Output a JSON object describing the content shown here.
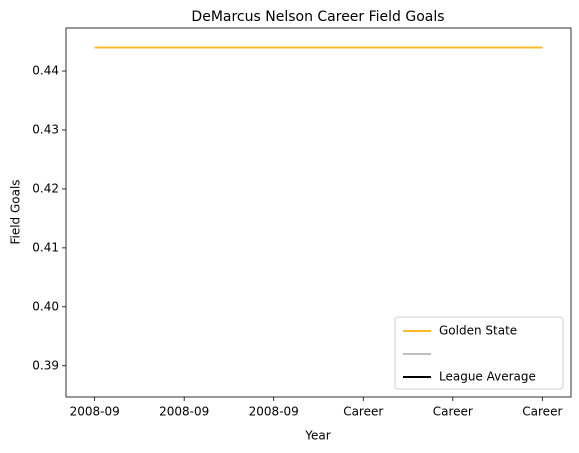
{
  "chart_data": {
    "type": "line",
    "title": "DeMarcus Nelson Career Field Goals",
    "x_label": "Year",
    "y_label": "Field Goals",
    "categories": [
      "2008-09",
      "2008-09",
      "2008-09",
      "Career",
      "Career",
      "Career"
    ],
    "series": [
      {
        "name": "Golden State",
        "color": "#fdb927",
        "values": [
          0.444,
          0.444,
          0.444,
          0.444,
          0.444,
          0.444
        ]
      },
      {
        "color": "#bfbfbf",
        "values": [
          null,
          null,
          null,
          null,
          null,
          null
        ]
      },
      {
        "name": "League Average",
        "color": "#000000",
        "values": [
          null,
          null,
          null,
          null,
          null,
          null
        ]
      }
    ],
    "ylim": [
      0.3847,
      0.4473
    ],
    "yticks": [
      0.39,
      {
        "value": 0.4,
        "label": "0.40"
      },
      0.41,
      0.42,
      0.43,
      0.44
    ],
    "legend": "lower right",
    "grid": false
  }
}
